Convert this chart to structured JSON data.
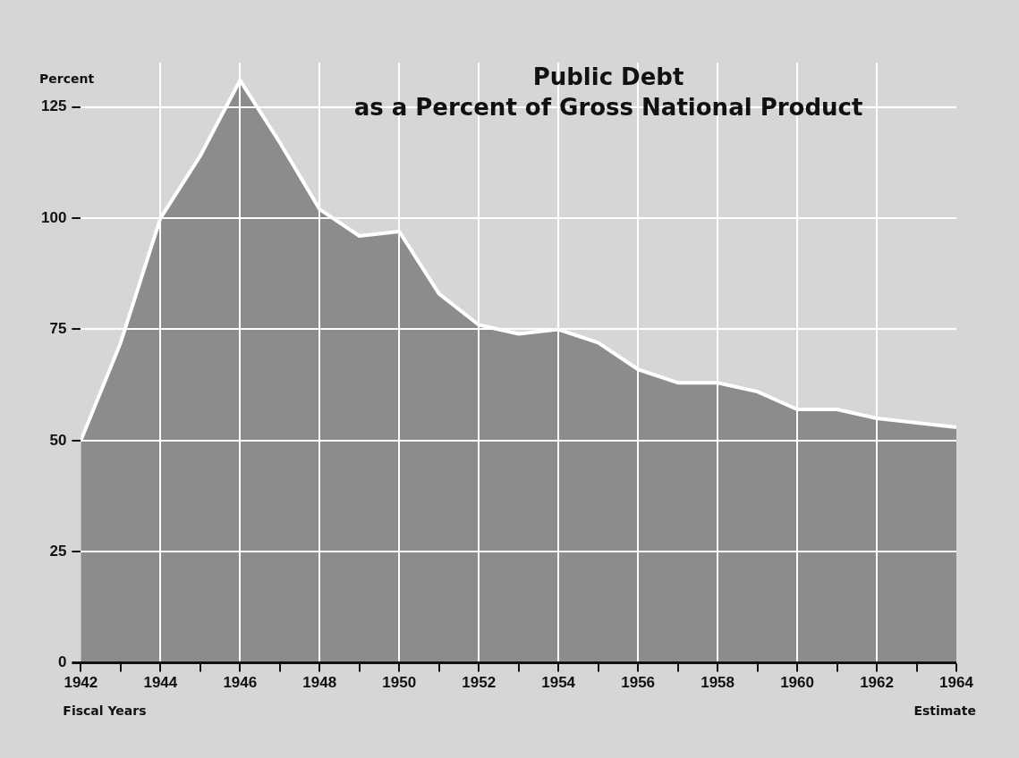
{
  "chart_data": {
    "type": "area",
    "title": "Public Debt",
    "subtitle": "as a Percent of Gross National Product",
    "ylabel": "Percent",
    "annotations": [
      "Fiscal Years",
      "Estimate"
    ],
    "x": [
      1942,
      1943,
      1944,
      1945,
      1946,
      1947,
      1948,
      1949,
      1950,
      1951,
      1952,
      1953,
      1954,
      1955,
      1956,
      1957,
      1958,
      1959,
      1960,
      1961,
      1962,
      1963,
      1964
    ],
    "series": [
      {
        "color": "#8c8c8c",
        "values": [
          50,
          72,
          100,
          114,
          131,
          117,
          102,
          96,
          97,
          83,
          76,
          74,
          75,
          72,
          66,
          63,
          63,
          61,
          57,
          57,
          55,
          54,
          53
        ]
      }
    ],
    "xlim": [
      1942,
      1964
    ],
    "xticks": [
      1942,
      {
        "value": 1943,
        "label": null
      },
      1944,
      {
        "value": 1945,
        "label": null
      },
      1946,
      {
        "value": 1947,
        "label": null
      },
      1948,
      {
        "value": 1949,
        "label": null
      },
      1950,
      {
        "value": 1951,
        "label": null
      },
      1952,
      {
        "value": 1953,
        "label": null
      },
      1954,
      {
        "value": 1955,
        "label": null
      },
      1956,
      {
        "value": 1957,
        "label": null
      },
      1958,
      {
        "value": 1959,
        "label": null
      },
      1960,
      {
        "value": 1961,
        "label": null
      },
      1962,
      {
        "value": 1963,
        "label": null
      },
      1964
    ],
    "ylim": [
      0,
      135
    ],
    "yticks": [
      0,
      25,
      50,
      75,
      100,
      125
    ],
    "grid": true,
    "legend": false
  }
}
